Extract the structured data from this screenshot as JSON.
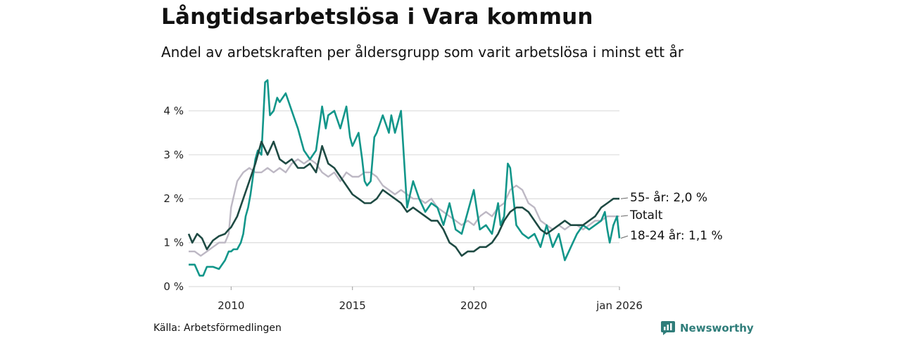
{
  "header": {
    "title": "Långtidsarbetslösa i Vara kommun",
    "subtitle": "Andel av arbetskraften per åldersgrupp som varit arbetslösa i minst ett år"
  },
  "footer": {
    "source": "Källa: Arbetsförmedlingen",
    "brand": "Newsworthy"
  },
  "colors": {
    "youth": "#12968a",
    "senior": "#1e4a43",
    "total": "#bdb8c4",
    "grid": "#dddddd",
    "brand": "#2f7d7a"
  },
  "chart_data": {
    "type": "line",
    "title": "Långtidsarbetslösa i Vara kommun",
    "xlabel": "",
    "ylabel": "",
    "xlim": [
      2008.25,
      2026.0
    ],
    "ylim": [
      0,
      4.6
    ],
    "y_ticks": [
      {
        "value": 0,
        "label": "0 %"
      },
      {
        "value": 1,
        "label": "1 %"
      },
      {
        "value": 2,
        "label": "2 %"
      },
      {
        "value": 3,
        "label": "3 %"
      },
      {
        "value": 4,
        "label": "4 %"
      }
    ],
    "x_ticks": [
      {
        "value": 2010,
        "label": "2010"
      },
      {
        "value": 2015,
        "label": "2015"
      },
      {
        "value": 2020,
        "label": "2020"
      },
      {
        "value": 2026,
        "label": "jan 2026"
      }
    ],
    "grid": true,
    "series": [
      {
        "key": "total",
        "name": "Totalt",
        "label": "Totalt",
        "x": [
          2008.25,
          2008.5,
          2008.75,
          2009.0,
          2009.25,
          2009.5,
          2009.75,
          2009.9,
          2010.0,
          2010.25,
          2010.5,
          2010.75,
          2011.0,
          2011.25,
          2011.5,
          2011.75,
          2012.0,
          2012.25,
          2012.5,
          2012.75,
          2013.0,
          2013.25,
          2013.5,
          2013.75,
          2014.0,
          2014.25,
          2014.5,
          2014.75,
          2015.0,
          2015.25,
          2015.5,
          2015.75,
          2016.0,
          2016.25,
          2016.5,
          2016.75,
          2017.0,
          2017.25,
          2017.5,
          2017.75,
          2018.0,
          2018.25,
          2018.5,
          2018.75,
          2019.0,
          2019.25,
          2019.5,
          2019.75,
          2020.0,
          2020.25,
          2020.5,
          2020.75,
          2021.0,
          2021.25,
          2021.5,
          2021.75,
          2022.0,
          2022.25,
          2022.5,
          2022.75,
          2023.0,
          2023.25,
          2023.5,
          2023.75,
          2024.0,
          2024.25,
          2024.5,
          2024.75,
          2025.0,
          2025.25,
          2025.5,
          2025.75,
          2026.0
        ],
        "values": [
          0.8,
          0.8,
          0.7,
          0.8,
          0.9,
          1.0,
          1.0,
          1.2,
          1.8,
          2.4,
          2.6,
          2.7,
          2.6,
          2.6,
          2.7,
          2.6,
          2.7,
          2.6,
          2.8,
          2.9,
          2.8,
          2.9,
          2.8,
          2.6,
          2.5,
          2.6,
          2.4,
          2.6,
          2.5,
          2.5,
          2.6,
          2.6,
          2.5,
          2.3,
          2.2,
          2.1,
          2.2,
          2.1,
          2.0,
          2.0,
          1.9,
          2.0,
          1.8,
          1.7,
          1.6,
          1.5,
          1.4,
          1.5,
          1.4,
          1.6,
          1.7,
          1.6,
          1.8,
          1.9,
          2.2,
          2.3,
          2.2,
          1.9,
          1.8,
          1.5,
          1.4,
          1.3,
          1.4,
          1.3,
          1.4,
          1.4,
          1.3,
          1.4,
          1.5,
          1.5,
          1.6,
          1.6,
          1.6
        ]
      },
      {
        "key": "youth",
        "name": "18-24 år",
        "label": "18-24 år: 1,1 %",
        "x": [
          2008.25,
          2008.5,
          2008.7,
          2008.85,
          2009.0,
          2009.25,
          2009.5,
          2009.75,
          2009.9,
          2010.0,
          2010.1,
          2010.25,
          2010.4,
          2010.5,
          2010.6,
          2010.7,
          2010.8,
          2011.0,
          2011.1,
          2011.25,
          2011.4,
          2011.5,
          2011.6,
          2011.75,
          2011.9,
          2012.0,
          2012.25,
          2012.5,
          2012.75,
          2012.9,
          2013.0,
          2013.25,
          2013.5,
          2013.75,
          2013.9,
          2014.0,
          2014.25,
          2014.5,
          2014.75,
          2014.9,
          2015.0,
          2015.25,
          2015.4,
          2015.5,
          2015.6,
          2015.75,
          2015.9,
          2016.0,
          2016.25,
          2016.5,
          2016.6,
          2016.75,
          2017.0,
          2017.25,
          2017.5,
          2017.75,
          2018.0,
          2018.25,
          2018.5,
          2018.75,
          2019.0,
          2019.25,
          2019.5,
          2019.75,
          2020.0,
          2020.25,
          2020.5,
          2020.75,
          2021.0,
          2021.1,
          2021.25,
          2021.4,
          2021.5,
          2021.75,
          2022.0,
          2022.25,
          2022.5,
          2022.75,
          2023.0,
          2023.25,
          2023.5,
          2023.75,
          2024.0,
          2024.25,
          2024.5,
          2024.75,
          2025.0,
          2025.25,
          2025.4,
          2025.5,
          2025.6,
          2025.75,
          2025.9,
          2026.0
        ],
        "values": [
          0.5,
          0.5,
          0.25,
          0.25,
          0.45,
          0.45,
          0.4,
          0.6,
          0.8,
          0.8,
          0.85,
          0.85,
          1.0,
          1.2,
          1.6,
          1.8,
          2.1,
          2.9,
          3.1,
          3.0,
          4.65,
          4.7,
          3.9,
          4.0,
          4.3,
          4.2,
          4.4,
          4.0,
          3.6,
          3.3,
          3.1,
          2.9,
          3.1,
          4.1,
          3.6,
          3.9,
          4.0,
          3.6,
          4.1,
          3.4,
          3.2,
          3.5,
          2.9,
          2.4,
          2.3,
          2.4,
          3.4,
          3.5,
          3.9,
          3.5,
          3.9,
          3.5,
          4.0,
          1.8,
          2.4,
          2.0,
          1.7,
          1.9,
          1.8,
          1.4,
          1.9,
          1.3,
          1.2,
          1.7,
          2.2,
          1.3,
          1.4,
          1.2,
          1.9,
          1.4,
          1.6,
          2.8,
          2.7,
          1.4,
          1.2,
          1.1,
          1.2,
          0.9,
          1.4,
          0.9,
          1.2,
          0.6,
          0.9,
          1.2,
          1.4,
          1.3,
          1.4,
          1.5,
          1.7,
          1.3,
          1.0,
          1.4,
          1.6,
          1.1
        ]
      },
      {
        "key": "senior",
        "name": "55- år",
        "label": "55- år: 2,0 %",
        "x": [
          2008.25,
          2008.4,
          2008.6,
          2008.8,
          2009.0,
          2009.25,
          2009.5,
          2009.75,
          2009.9,
          2010.0,
          2010.25,
          2010.5,
          2010.75,
          2011.0,
          2011.25,
          2011.5,
          2011.75,
          2012.0,
          2012.25,
          2012.5,
          2012.75,
          2013.0,
          2013.25,
          2013.5,
          2013.75,
          2014.0,
          2014.25,
          2014.5,
          2014.75,
          2015.0,
          2015.25,
          2015.5,
          2015.75,
          2016.0,
          2016.25,
          2016.5,
          2016.75,
          2017.0,
          2017.25,
          2017.5,
          2017.75,
          2018.0,
          2018.25,
          2018.5,
          2018.75,
          2019.0,
          2019.25,
          2019.5,
          2019.75,
          2020.0,
          2020.25,
          2020.5,
          2020.75,
          2021.0,
          2021.25,
          2021.5,
          2021.75,
          2022.0,
          2022.25,
          2022.5,
          2022.75,
          2023.0,
          2023.25,
          2023.5,
          2023.75,
          2024.0,
          2024.25,
          2024.5,
          2024.75,
          2025.0,
          2025.25,
          2025.5,
          2025.75,
          2026.0
        ],
        "values": [
          1.2,
          1.0,
          1.2,
          1.1,
          0.85,
          1.05,
          1.15,
          1.2,
          1.3,
          1.35,
          1.6,
          2.0,
          2.4,
          2.8,
          3.3,
          3.0,
          3.3,
          2.9,
          2.8,
          2.9,
          2.7,
          2.7,
          2.8,
          2.6,
          3.2,
          2.8,
          2.7,
          2.5,
          2.3,
          2.1,
          2.0,
          1.9,
          1.9,
          2.0,
          2.2,
          2.1,
          2.0,
          1.9,
          1.7,
          1.8,
          1.7,
          1.6,
          1.5,
          1.5,
          1.3,
          1.0,
          0.9,
          0.7,
          0.8,
          0.8,
          0.9,
          0.9,
          1.0,
          1.2,
          1.5,
          1.7,
          1.8,
          1.8,
          1.7,
          1.5,
          1.3,
          1.2,
          1.3,
          1.4,
          1.5,
          1.4,
          1.4,
          1.4,
          1.5,
          1.6,
          1.8,
          1.9,
          2.0,
          2.0
        ]
      }
    ]
  }
}
